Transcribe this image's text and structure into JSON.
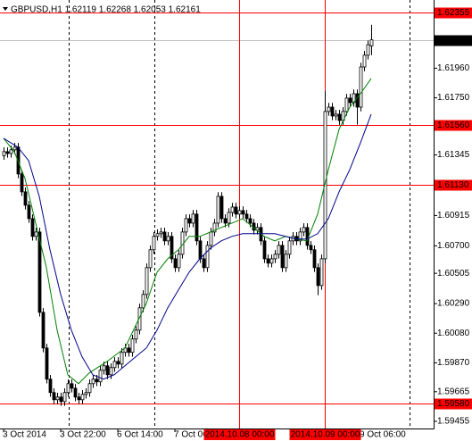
{
  "chart_data": {
    "type": "candlestick",
    "title": "GBPUSD,H1  1.62119 1.62268 1.62053 1.62161",
    "ylim": [
      1.59404,
      1.62444
    ],
    "yticks": [
      {
        "value": 1.6196,
        "label": "1.61960"
      },
      {
        "value": 1.6175,
        "label": "1.61750"
      },
      1.61345,
      1.60915,
      {
        "value": 1.607,
        "label": "1.60700"
      },
      1.60505,
      {
        "value": 1.6029,
        "label": "1.60290"
      },
      {
        "value": 1.6008,
        "label": "1.60080"
      },
      {
        "value": 1.5987,
        "label": "1.59870"
      },
      1.59665,
      1.59455
    ],
    "xticks": [
      {
        "value": 0,
        "label": "3 Oct 2014"
      },
      {
        "value": 16,
        "label": "3 Oct 22:00"
      },
      {
        "value": 32,
        "label": "6 Oct 14:00"
      },
      {
        "value": 48,
        "label": "7 Oct 06:00"
      },
      {
        "value": 100,
        "label": "9 Oct 06:00"
      }
    ],
    "levels": [
      1.62355,
      {
        "value": 1.6156,
        "label": "1.61560"
      },
      {
        "value": 1.6113,
        "label": "1.61130"
      },
      {
        "value": 1.5958,
        "label": "1.59580"
      }
    ],
    "level_color": "#ff0000",
    "vlines": [
      {
        "value": 66,
        "label": "2014.10.08 00:00"
      },
      {
        "value": 90,
        "label": "2014.10.09 00:00"
      }
    ],
    "last_price": 1.62161,
    "up_color": "#ffffff",
    "down_color": "#000000",
    "open": [
      1.6134,
      1.61368,
      1.61355,
      1.61381,
      1.614,
      1.6121,
      1.61083,
      1.60988,
      1.60893,
      1.60767,
      1.60798,
      1.60228,
      1.59975,
      1.59754,
      1.59659,
      1.59608,
      1.59627,
      1.59595,
      1.59659,
      1.59722,
      1.5969,
      1.59627,
      1.59608,
      1.59646,
      1.59659,
      1.59722,
      1.59754,
      1.59735,
      1.59817,
      1.59849,
      1.59785,
      1.59836,
      1.5988,
      1.59861,
      1.59944,
      1.59975,
      1.59944,
      1.60039,
      1.60102,
      1.6026,
      1.60355,
      1.60545,
      1.60672,
      1.60767,
      1.60786,
      1.60798,
      1.60735,
      1.60767,
      1.60608,
      1.60545,
      1.6064,
      1.60798,
      1.60893,
      1.60861,
      1.60925,
      1.60735,
      1.60608,
      1.60545,
      1.60703,
      1.60798,
      1.60861,
      1.61051,
      1.60893,
      1.60861,
      1.60937,
      1.60975,
      1.60925,
      1.6095,
      1.60925,
      1.60893,
      1.60861,
      1.60811,
      1.6083,
      1.60735,
      1.60608,
      1.60577,
      1.60608,
      1.6064,
      1.60703,
      1.60545,
      1.6064,
      1.60735,
      1.60767,
      1.60735,
      1.60798,
      1.6083,
      1.60703,
      1.60672,
      1.60545,
      1.60418,
      1.60608,
      1.61653,
      1.61684,
      1.61621,
      1.61634,
      1.61589,
      1.61653,
      1.61748,
      1.61716,
      1.61779,
      1.61684,
      1.61969,
      1.62052,
      1.62119
    ],
    "high": [
      1.61398,
      1.61398,
      1.61411,
      1.6143,
      1.6143,
      1.6124,
      1.61113,
      1.61018,
      1.60923,
      1.60828,
      1.60828,
      1.60258,
      1.60005,
      1.59784,
      1.59689,
      1.59657,
      1.59657,
      1.59689,
      1.59752,
      1.59752,
      1.5972,
      1.59657,
      1.59676,
      1.59689,
      1.59752,
      1.59784,
      1.59784,
      1.59847,
      1.59879,
      1.59879,
      1.59866,
      1.5991,
      1.5991,
      1.59974,
      1.60005,
      1.60005,
      1.60069,
      1.60132,
      1.6029,
      1.60385,
      1.60575,
      1.60702,
      1.60797,
      1.60816,
      1.60828,
      1.60828,
      1.60797,
      1.60797,
      1.60638,
      1.6067,
      1.60828,
      1.60923,
      1.60923,
      1.60955,
      1.60955,
      1.60765,
      1.60638,
      1.60733,
      1.60828,
      1.60891,
      1.61081,
      1.61081,
      1.60923,
      1.60967,
      1.61005,
      1.61005,
      1.6098,
      1.6098,
      1.60955,
      1.60923,
      1.60891,
      1.6086,
      1.6086,
      1.60765,
      1.60638,
      1.60638,
      1.6067,
      1.60733,
      1.60733,
      1.6067,
      1.60765,
      1.60797,
      1.60797,
      1.60828,
      1.6086,
      1.6086,
      1.60733,
      1.60702,
      1.60575,
      1.60638,
      1.618,
      1.61714,
      1.61714,
      1.61664,
      1.61664,
      1.61683,
      1.61778,
      1.61778,
      1.61809,
      1.61809,
      1.61999,
      1.62082,
      1.62157,
      1.62268
    ],
    "low": [
      1.6131,
      1.61325,
      1.61325,
      1.61351,
      1.6118,
      1.61053,
      1.60958,
      1.60863,
      1.60737,
      1.60737,
      1.60198,
      1.59945,
      1.59724,
      1.59629,
      1.59578,
      1.59578,
      1.59565,
      1.59565,
      1.59629,
      1.5966,
      1.59597,
      1.59578,
      1.59578,
      1.59616,
      1.59629,
      1.59692,
      1.59705,
      1.59705,
      1.59787,
      1.59755,
      1.59755,
      1.59806,
      1.59831,
      1.59831,
      1.59914,
      1.59914,
      1.59914,
      1.60009,
      1.60072,
      1.6023,
      1.60325,
      1.60515,
      1.60642,
      1.60737,
      1.60756,
      1.60705,
      1.60705,
      1.60578,
      1.60515,
      1.60515,
      1.6061,
      1.60768,
      1.60831,
      1.60831,
      1.60705,
      1.60578,
      1.60515,
      1.60515,
      1.60673,
      1.60768,
      1.60831,
      1.60863,
      1.60831,
      1.60831,
      1.60907,
      1.60895,
      1.60895,
      1.60895,
      1.60863,
      1.60831,
      1.60781,
      1.60781,
      1.60705,
      1.60578,
      1.60547,
      1.60547,
      1.60578,
      1.6061,
      1.60515,
      1.60515,
      1.6061,
      1.60705,
      1.60705,
      1.60705,
      1.60768,
      1.60673,
      1.60642,
      1.60515,
      1.6035,
      1.60388,
      1.60578,
      1.61623,
      1.61591,
      1.61591,
      1.61559,
      1.61559,
      1.61623,
      1.61686,
      1.61686,
      1.6156,
      1.61654,
      1.61939,
      1.62022,
      1.62053
    ],
    "close": [
      1.61368,
      1.61355,
      1.61381,
      1.614,
      1.6121,
      1.61083,
      1.60988,
      1.60893,
      1.60767,
      1.60798,
      1.60228,
      1.59975,
      1.59754,
      1.59659,
      1.59608,
      1.59627,
      1.59595,
      1.59659,
      1.59722,
      1.5969,
      1.59627,
      1.59608,
      1.59646,
      1.59659,
      1.59722,
      1.59754,
      1.59735,
      1.59817,
      1.59849,
      1.59785,
      1.59836,
      1.5988,
      1.59861,
      1.59944,
      1.59975,
      1.59944,
      1.60039,
      1.60102,
      1.6026,
      1.60355,
      1.60545,
      1.60672,
      1.60767,
      1.60786,
      1.60798,
      1.60735,
      1.60767,
      1.60608,
      1.60545,
      1.6064,
      1.60798,
      1.60893,
      1.60861,
      1.60925,
      1.60735,
      1.60608,
      1.60545,
      1.60703,
      1.60798,
      1.60861,
      1.61051,
      1.60893,
      1.60861,
      1.60937,
      1.60975,
      1.60925,
      1.6095,
      1.60925,
      1.60893,
      1.60861,
      1.60811,
      1.6083,
      1.60735,
      1.60608,
      1.60577,
      1.60608,
      1.6064,
      1.60703,
      1.60545,
      1.6064,
      1.60735,
      1.60767,
      1.60735,
      1.60798,
      1.6083,
      1.60703,
      1.60672,
      1.60545,
      1.60418,
      1.60608,
      1.61653,
      1.61684,
      1.61621,
      1.61634,
      1.61589,
      1.61653,
      1.61748,
      1.61716,
      1.61779,
      1.61684,
      1.61969,
      1.62052,
      1.62127,
      1.62161
    ],
    "series": [
      {
        "color": "#008000",
        "x": [
          0,
          3,
          6,
          9,
          12,
          15,
          18,
          21,
          24,
          29,
          34,
          37,
          40,
          43,
          46,
          49,
          52,
          55,
          58,
          61,
          64,
          67,
          70,
          73,
          76,
          79,
          82,
          85,
          88,
          91,
          94,
          97,
          100,
          103
        ],
        "values": [
          1.61463,
          1.61368,
          1.61178,
          1.60861,
          1.60545,
          1.60102,
          1.59785,
          1.59722,
          1.59798,
          1.5988,
          1.59975,
          1.60134,
          1.60292,
          1.60513,
          1.60608,
          1.60672,
          1.60767,
          1.60767,
          1.60798,
          1.6083,
          1.60861,
          1.60893,
          1.6083,
          1.60767,
          1.60735,
          1.60767,
          1.60748,
          1.60735,
          1.60925,
          1.61241,
          1.61526,
          1.61684,
          1.61779,
          1.61887
        ]
      },
      {
        "color": "#00008b",
        "x": [
          0,
          4,
          7,
          10,
          13,
          16,
          19,
          22,
          25,
          28,
          31,
          34,
          37,
          40,
          43,
          46,
          49,
          52,
          55,
          58,
          61,
          64,
          67,
          70,
          73,
          76,
          79,
          82,
          85,
          88,
          91,
          94,
          97,
          100,
          103
        ],
        "values": [
          1.61463,
          1.614,
          1.61305,
          1.61051,
          1.60672,
          1.60355,
          1.60102,
          1.59912,
          1.59785,
          1.59754,
          1.59785,
          1.59849,
          1.59912,
          1.59975,
          1.60102,
          1.6026,
          1.60387,
          1.60513,
          1.60608,
          1.60684,
          1.60735,
          1.60767,
          1.60786,
          1.60786,
          1.60786,
          1.60786,
          1.60767,
          1.60748,
          1.60748,
          1.60786,
          1.60893,
          1.61083,
          1.61241,
          1.61431,
          1.61634
        ]
      }
    ]
  }
}
